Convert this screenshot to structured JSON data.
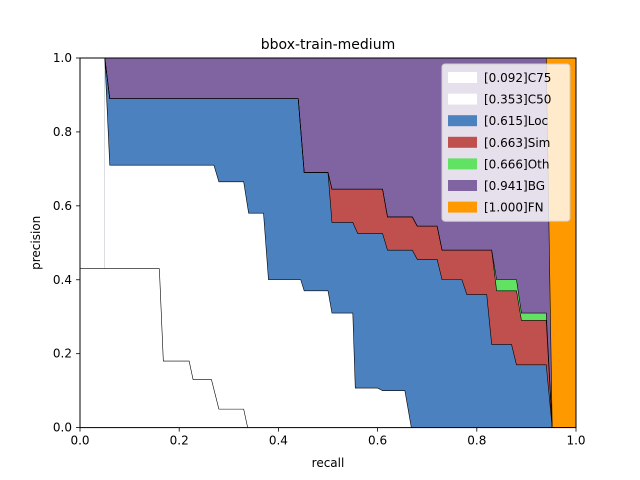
{
  "chart_data": {
    "type": "area",
    "title": "bbox-train-medium",
    "xlabel": "recall",
    "ylabel": "precision",
    "xlim": [
      0,
      1
    ],
    "ylim": [
      0,
      1
    ],
    "xticks": [
      "0.0",
      "0.2",
      "0.4",
      "0.6",
      "0.8",
      "1.0"
    ],
    "yticks": [
      "0.0",
      "0.2",
      "0.4",
      "0.6",
      "0.8",
      "1.0"
    ],
    "grid": false,
    "legend_position": "top-right",
    "series": [
      {
        "name": "[0.092]C75",
        "color": "#ffffff",
        "points": [
          [
            0,
            0.43
          ],
          [
            0.16,
            0.43
          ],
          [
            0.168,
            0.18
          ],
          [
            0.22,
            0.18
          ],
          [
            0.228,
            0.13
          ],
          [
            0.265,
            0.13
          ],
          [
            0.28,
            0.05
          ],
          [
            0.33,
            0.05
          ],
          [
            0.338,
            0
          ]
        ]
      },
      {
        "name": "[0.353]C50",
        "color": "#ffffff",
        "points": [
          [
            0.05,
            1.0
          ],
          [
            0.06,
            0.71
          ],
          [
            0.27,
            0.71
          ],
          [
            0.28,
            0.665
          ],
          [
            0.33,
            0.665
          ],
          [
            0.34,
            0.58
          ],
          [
            0.37,
            0.58
          ],
          [
            0.38,
            0.4
          ],
          [
            0.445,
            0.4
          ],
          [
            0.452,
            0.37
          ],
          [
            0.5,
            0.37
          ],
          [
            0.508,
            0.31
          ],
          [
            0.55,
            0.31
          ],
          [
            0.555,
            0.107
          ],
          [
            0.6,
            0.107
          ],
          [
            0.61,
            0.1
          ],
          [
            0.655,
            0.1
          ],
          [
            0.668,
            0
          ]
        ]
      },
      {
        "name": "[0.615]Loc",
        "color": "#4c81bf",
        "points": [
          [
            0.05,
            1.0
          ],
          [
            0.06,
            0.89
          ],
          [
            0.44,
            0.89
          ],
          [
            0.452,
            0.69
          ],
          [
            0.5,
            0.69
          ],
          [
            0.508,
            0.555
          ],
          [
            0.55,
            0.555
          ],
          [
            0.56,
            0.525
          ],
          [
            0.61,
            0.525
          ],
          [
            0.62,
            0.48
          ],
          [
            0.67,
            0.48
          ],
          [
            0.68,
            0.455
          ],
          [
            0.72,
            0.455
          ],
          [
            0.73,
            0.4
          ],
          [
            0.77,
            0.4
          ],
          [
            0.78,
            0.36
          ],
          [
            0.82,
            0.36
          ],
          [
            0.83,
            0.225
          ],
          [
            0.87,
            0.225
          ],
          [
            0.88,
            0.17
          ],
          [
            0.94,
            0.17
          ],
          [
            0.952,
            0
          ]
        ]
      },
      {
        "name": "[0.663]Sim",
        "color": "#c0504d",
        "points": [
          [
            0.05,
            1.0
          ],
          [
            0.06,
            0.89
          ],
          [
            0.44,
            0.89
          ],
          [
            0.452,
            0.69
          ],
          [
            0.5,
            0.69
          ],
          [
            0.508,
            0.645
          ],
          [
            0.61,
            0.645
          ],
          [
            0.62,
            0.57
          ],
          [
            0.67,
            0.57
          ],
          [
            0.68,
            0.545
          ],
          [
            0.72,
            0.545
          ],
          [
            0.73,
            0.48
          ],
          [
            0.83,
            0.48
          ],
          [
            0.84,
            0.37
          ],
          [
            0.88,
            0.37
          ],
          [
            0.89,
            0.29
          ],
          [
            0.94,
            0.29
          ],
          [
            0.952,
            0
          ]
        ]
      },
      {
        "name": "[0.666]Oth",
        "color": "#62e262",
        "points": [
          [
            0.05,
            1.0
          ],
          [
            0.06,
            0.89
          ],
          [
            0.44,
            0.89
          ],
          [
            0.452,
            0.69
          ],
          [
            0.5,
            0.69
          ],
          [
            0.508,
            0.645
          ],
          [
            0.61,
            0.645
          ],
          [
            0.62,
            0.57
          ],
          [
            0.67,
            0.57
          ],
          [
            0.68,
            0.545
          ],
          [
            0.72,
            0.545
          ],
          [
            0.73,
            0.48
          ],
          [
            0.83,
            0.48
          ],
          [
            0.84,
            0.4
          ],
          [
            0.88,
            0.4
          ],
          [
            0.89,
            0.31
          ],
          [
            0.94,
            0.31
          ],
          [
            0.952,
            0
          ]
        ]
      },
      {
        "name": "[0.941]BG",
        "color": "#8064a2",
        "points": [
          [
            0.05,
            1.0
          ],
          [
            0.94,
            1.0
          ],
          [
            0.952,
            0
          ]
        ]
      },
      {
        "name": "[1.000]FN",
        "color": "#ff9900",
        "points": [
          [
            0.94,
            1.0
          ],
          [
            1.0,
            1.0
          ],
          [
            1.0,
            0
          ],
          [
            0.952,
            0
          ]
        ]
      }
    ]
  }
}
